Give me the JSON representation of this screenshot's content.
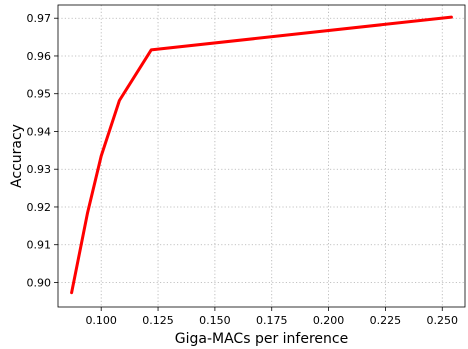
{
  "chart_data": {
    "type": "line",
    "title": "",
    "xlabel": "Giga-MACs per inference",
    "ylabel": "Accuracy",
    "xlim": [
      0.081,
      0.26
    ],
    "ylim": [
      0.8935,
      0.9735
    ],
    "xticks": [
      0.1,
      0.125,
      0.15,
      0.175,
      0.2,
      0.225,
      0.25
    ],
    "xtick_labels": [
      "0.100",
      "0.125",
      "0.150",
      "0.175",
      "0.200",
      "0.225",
      "0.250"
    ],
    "yticks": [
      0.9,
      0.91,
      0.92,
      0.93,
      0.94,
      0.95,
      0.96,
      0.97
    ],
    "ytick_labels": [
      "0.90",
      "0.91",
      "0.92",
      "0.93",
      "0.94",
      "0.95",
      "0.96",
      "0.97"
    ],
    "grid": true,
    "legend": "none",
    "series": [
      {
        "color": "#ff0000",
        "x": [
          0.087,
          0.094,
          0.1,
          0.108,
          0.122,
          0.254
        ],
        "y": [
          0.8973,
          0.9185,
          0.9335,
          0.9482,
          0.9616,
          0.9703
        ]
      }
    ]
  }
}
